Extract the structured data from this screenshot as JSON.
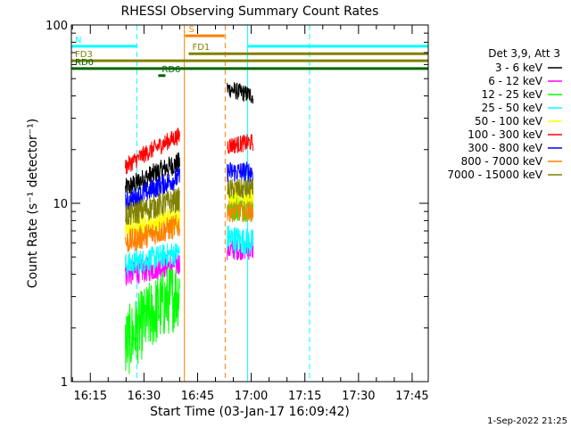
{
  "chart_data": {
    "type": "line",
    "title": "RHESSI Observing Summary Count Rates",
    "xlabel": "Start Time (03-Jan-17 16:09:42)",
    "ylabel": "Count Rate (s⁻¹ detector⁻¹)",
    "ylim": [
      1,
      100
    ],
    "yscale": "log",
    "yticks": [
      1,
      10,
      100
    ],
    "ytick_labels": [
      "1",
      "10",
      "100"
    ],
    "xlim_minutes": [
      969.7,
      1069.5
    ],
    "xticks_minutes": [
      975,
      990,
      1005,
      1020,
      1035,
      1050,
      1065
    ],
    "xtick_labels": [
      "16:15",
      "16:30",
      "16:45",
      "17:00",
      "17:15",
      "17:30",
      "17:45"
    ],
    "legend": {
      "header": "Det 3,9, Att 3",
      "placement": "right",
      "entries": [
        {
          "label": "3 - 6 keV",
          "color": "#000000"
        },
        {
          "label": "6 - 12 keV",
          "color": "#ff00ff"
        },
        {
          "label": "12 - 25 keV",
          "color": "#00ff00"
        },
        {
          "label": "25 - 50 keV",
          "color": "#00ffff"
        },
        {
          "label": "50 - 100 keV",
          "color": "#ffff00"
        },
        {
          "label": "100 - 300 keV",
          "color": "#ff0000"
        },
        {
          "label": "300 - 800 keV",
          "color": "#0000ff"
        },
        {
          "label": "800 - 7000 keV",
          "color": "#ff8000"
        },
        {
          "label": "7000 - 15000 keV",
          "color": "#808000"
        }
      ]
    },
    "series": [
      {
        "name": "3 - 6 keV",
        "color": "#000000",
        "segments": [
          {
            "start": 984.8,
            "end": 1000.0,
            "y_from": 12.0,
            "y_to": 17.0,
            "jitter": 0.06
          },
          {
            "start": 1013.3,
            "end": 1020.5,
            "y_from": 44.0,
            "y_to": 40.0,
            "jitter": 0.05
          }
        ]
      },
      {
        "name": "6 - 12 keV",
        "color": "#ff00ff",
        "segments": [
          {
            "start": 984.8,
            "end": 1000.0,
            "y_from": 4.0,
            "y_to": 4.6,
            "jitter": 0.07
          },
          {
            "start": 1013.3,
            "end": 1020.5,
            "y_from": 5.5,
            "y_to": 5.5,
            "jitter": 0.06
          }
        ]
      },
      {
        "name": "12 - 25 keV",
        "color": "#00ff00",
        "segments": [
          {
            "start": 984.8,
            "end": 1000.0,
            "y_from": 1.6,
            "y_to": 3.2,
            "jitter": 0.2
          },
          {
            "start": 1013.3,
            "end": 1020.5,
            "y_from": 9.5,
            "y_to": 9.5,
            "jitter": 0.08
          }
        ]
      },
      {
        "name": "25 - 50 keV",
        "color": "#00ffff",
        "segments": [
          {
            "start": 984.8,
            "end": 1000.0,
            "y_from": 4.5,
            "y_to": 5.3,
            "jitter": 0.07
          },
          {
            "start": 1013.3,
            "end": 1020.5,
            "y_from": 6.4,
            "y_to": 6.0,
            "jitter": 0.08
          }
        ]
      },
      {
        "name": "50 - 100 keV",
        "color": "#ffff00",
        "segments": [
          {
            "start": 984.8,
            "end": 1000.0,
            "y_from": 7.0,
            "y_to": 8.5,
            "jitter": 0.07
          },
          {
            "start": 1013.3,
            "end": 1020.5,
            "y_from": 11.0,
            "y_to": 11.0,
            "jitter": 0.06
          }
        ]
      },
      {
        "name": "100 - 300 keV",
        "color": "#ff0000",
        "segments": [
          {
            "start": 984.8,
            "end": 1000.0,
            "y_from": 16.0,
            "y_to": 24.0,
            "jitter": 0.05
          },
          {
            "start": 1013.3,
            "end": 1020.5,
            "y_from": 21.0,
            "y_to": 22.0,
            "jitter": 0.05
          }
        ]
      },
      {
        "name": "300 - 800 keV",
        "color": "#0000ff",
        "segments": [
          {
            "start": 984.8,
            "end": 1000.0,
            "y_from": 10.0,
            "y_to": 14.0,
            "jitter": 0.06
          },
          {
            "start": 1013.3,
            "end": 1020.5,
            "y_from": 15.0,
            "y_to": 15.0,
            "jitter": 0.06
          }
        ]
      },
      {
        "name": "800 - 7000 keV",
        "color": "#ff8000",
        "segments": [
          {
            "start": 984.8,
            "end": 1000.0,
            "y_from": 6.0,
            "y_to": 7.5,
            "jitter": 0.07
          },
          {
            "start": 1013.3,
            "end": 1020.5,
            "y_from": 9.0,
            "y_to": 9.0,
            "jitter": 0.06
          }
        ]
      },
      {
        "name": "7000 - 15000 keV",
        "color": "#808000",
        "segments": [
          {
            "start": 984.8,
            "end": 1000.0,
            "y_from": 8.5,
            "y_to": 10.5,
            "jitter": 0.07
          },
          {
            "start": 1013.3,
            "end": 1020.5,
            "y_from": 12.0,
            "y_to": 12.0,
            "jitter": 0.06
          }
        ]
      }
    ],
    "flag_bars": [
      {
        "label": "N",
        "color": "#00ffff",
        "start": 969.7,
        "end": 988.0,
        "y": 76
      },
      {
        "label": "",
        "color": "#00ffff",
        "start": 1019.0,
        "end": 1069.5,
        "y": 76
      },
      {
        "label": "S",
        "color": "#ff8000",
        "start": 1001.5,
        "end": 1012.5,
        "y": 87
      },
      {
        "label": "FD1",
        "color": "#808000",
        "start": 1002.5,
        "end": 1069.5,
        "y": 69
      },
      {
        "label": "FD3",
        "color": "#808000",
        "start": 969.7,
        "end": 1069.5,
        "y": 63
      },
      {
        "label": "RD6",
        "color": "#006400",
        "start": 994.0,
        "end": 996.0,
        "y": 52
      },
      {
        "label": "RD0",
        "color": "#006400",
        "start": 969.7,
        "end": 1069.5,
        "y": 57
      }
    ],
    "vertical_markers": [
      {
        "color": "#00ffff",
        "x": 969.7,
        "style": "solid"
      },
      {
        "color": "#00ffff",
        "x": 988.0,
        "style": "dashed"
      },
      {
        "color": "#ff8000",
        "x": 1001.3,
        "style": "solid"
      },
      {
        "color": "#ff8000",
        "x": 1012.7,
        "style": "dashed"
      },
      {
        "color": "#00ffff",
        "x": 1019.0,
        "style": "solid"
      },
      {
        "color": "#00ffff",
        "x": 1036.3,
        "style": "dashed"
      }
    ]
  },
  "footer": {
    "timestamp": "1-Sep-2022 21:25"
  }
}
